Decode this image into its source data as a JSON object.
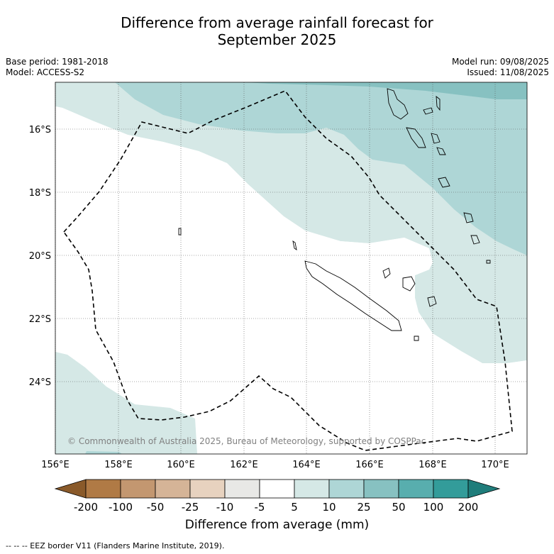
{
  "title_line1": "Difference from average rainfall forecast for",
  "title_line2": "September 2025",
  "meta": {
    "base_period": "Base period: 1981-2018",
    "model": "Model: ACCESS-S2",
    "model_run": "Model run: 09/08/2025",
    "issued": "Issued: 11/08/2025"
  },
  "map": {
    "lat_labels": [
      "16°S",
      "18°S",
      "20°S",
      "22°S",
      "24°S"
    ],
    "lon_labels": [
      "156°E",
      "158°E",
      "160°E",
      "162°E",
      "164°E",
      "166°E",
      "168°E",
      "170°E"
    ],
    "copyright": "© Commonwealth of Australia 2025, Bureau of Meteorology, supported by COSPPac"
  },
  "colorbar": {
    "ticks": [
      "-200",
      "-100",
      "-50",
      "-25",
      "-10",
      "-5",
      "5",
      "10",
      "25",
      "50",
      "100",
      "200"
    ],
    "colors": [
      "#8a5a2a",
      "#b07a45",
      "#c39770",
      "#d5b497",
      "#e7d2bf",
      "#e8e8e6",
      "#ffffff",
      "#d5e8e6",
      "#aed6d6",
      "#87c1c1",
      "#58aeae",
      "#339c9a",
      "#1f7d7b"
    ],
    "title": "Difference from average (mm)"
  },
  "footer": "--  --  -- EEZ border V11 (Flanders Marine Institute, 2019)."
}
